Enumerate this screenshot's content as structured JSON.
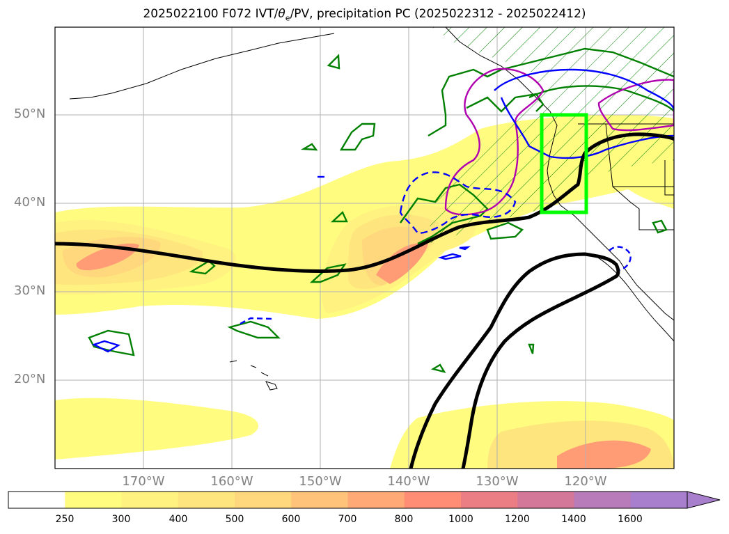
{
  "title": "2025022100 F072 IVT/θe/PV, precipitation PC (2025022312 - 2025022412)",
  "title_parts": {
    "prefix": "2025022100 F072 IVT/",
    "theta": "θ",
    "theta_sub": "e",
    "suffix": "/PV, precipitation PC (2025022312 - 2025022412)"
  },
  "lat_labels": [
    "50°N",
    "40°N",
    "30°N",
    "20°N"
  ],
  "lon_labels": [
    "170°W",
    "160°W",
    "150°W",
    "140°W",
    "130°W",
    "120°W"
  ],
  "colorbar": {
    "levels": [
      "250",
      "300",
      "400",
      "500",
      "600",
      "700",
      "800",
      "1000",
      "1200",
      "1400",
      "1600"
    ],
    "colors": [
      "#ffffff",
      "#fffc80",
      "#fff280",
      "#ffe57d",
      "#ffd77c",
      "#ffc37a",
      "#ffaa76",
      "#ff8c74",
      "#eb7d84",
      "#d37899",
      "#b97cba",
      "#a87fcc"
    ],
    "extend": "max"
  },
  "colors": {
    "ivt_fill": "#fffc80",
    "theta_e_contour": "#000000",
    "pv_contour": "#008000",
    "pv_hatch": "#008000",
    "blue_contour": "#0000ff",
    "magenta_contour": "#b000b0",
    "highlight_box": "#00ff00",
    "gridline": "#b0b0b0",
    "axis_label": "#808080"
  },
  "map": {
    "projection": "PlateCarree",
    "lon_range": [
      "175°W",
      "105°W"
    ],
    "lat_range": [
      "10°N",
      "60°N"
    ],
    "grid": true,
    "highlight_box": {
      "lon": [
        "125°W",
        "120°W"
      ],
      "lat": [
        "39°N",
        "50°N"
      ]
    }
  }
}
